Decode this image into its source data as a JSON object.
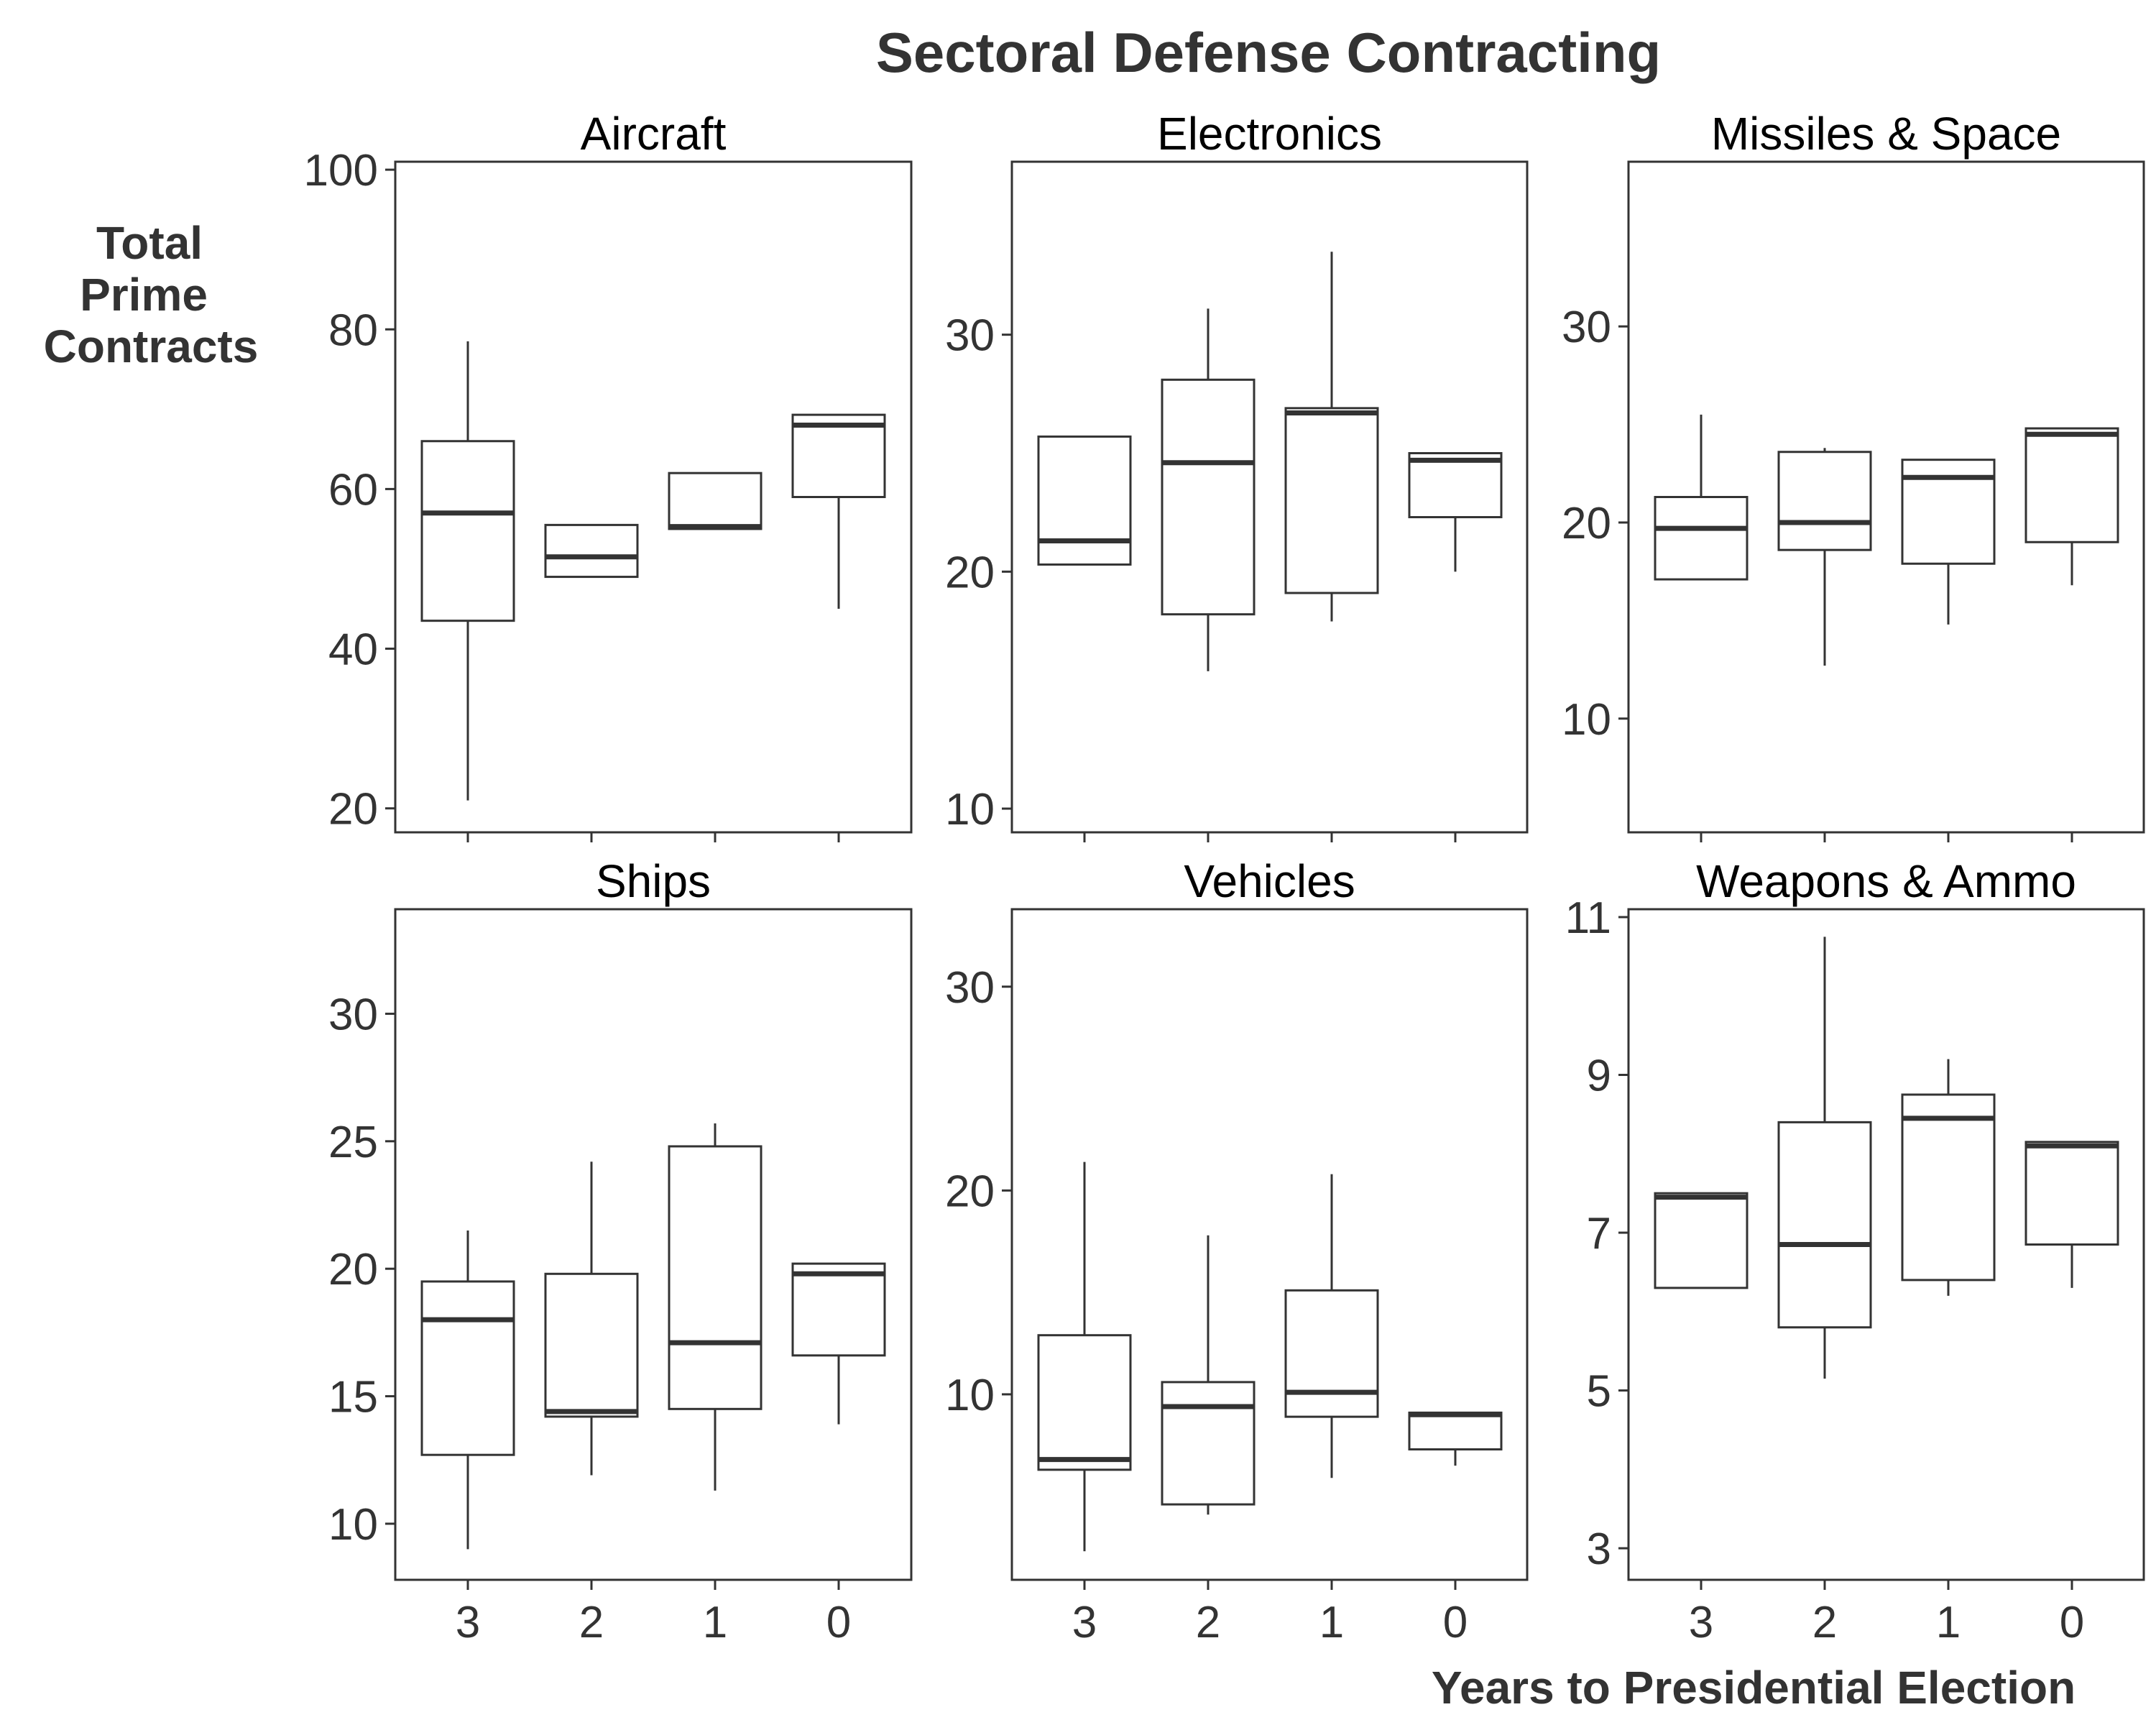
{
  "chart_data": {
    "type": "box",
    "title": "Sectoral Defense Contracting",
    "xlabel": "Years to Presidential Election",
    "ylabel": [
      "Total",
      "Prime",
      "Contracts"
    ],
    "categories": [
      "3",
      "2",
      "1",
      "0"
    ],
    "panels": [
      {
        "name": "Aircraft",
        "ylim": [
          17,
          101
        ],
        "yticks": [
          20,
          40,
          60,
          80,
          100
        ],
        "boxes": [
          {
            "category": "3",
            "min": 21,
            "q1": 43.5,
            "median": 57,
            "q3": 66,
            "max": 78.5
          },
          {
            "category": "2",
            "min": 49,
            "q1": 49,
            "median": 51.5,
            "q3": 55.5,
            "max": 55.5
          },
          {
            "category": "1",
            "min": 55,
            "q1": 55,
            "median": 55.3,
            "q3": 62,
            "max": 62
          },
          {
            "category": "0",
            "min": 45,
            "q1": 59,
            "median": 68,
            "q3": 69.3,
            "max": 69.3
          }
        ]
      },
      {
        "name": "Electronics",
        "ylim": [
          9,
          37.3
        ],
        "yticks": [
          10,
          20,
          30
        ],
        "boxes": [
          {
            "category": "3",
            "min": 20.3,
            "q1": 20.3,
            "median": 21.3,
            "q3": 25.7,
            "max": 25.7
          },
          {
            "category": "2",
            "min": 15.8,
            "q1": 18.2,
            "median": 24.6,
            "q3": 28.1,
            "max": 31.1
          },
          {
            "category": "1",
            "min": 17.9,
            "q1": 19.1,
            "median": 26.7,
            "q3": 26.9,
            "max": 33.5
          },
          {
            "category": "0",
            "min": 20.0,
            "q1": 22.3,
            "median": 24.7,
            "q3": 25.0,
            "max": 25.0
          }
        ]
      },
      {
        "name": "Missiles & Space",
        "ylim": [
          4.2,
          38.4
        ],
        "yticks": [
          10,
          20,
          30
        ],
        "boxes": [
          {
            "category": "3",
            "min": 17.1,
            "q1": 17.1,
            "median": 19.7,
            "q3": 21.3,
            "max": 25.5
          },
          {
            "category": "2",
            "min": 12.7,
            "q1": 18.6,
            "median": 20.0,
            "q3": 23.6,
            "max": 23.8
          },
          {
            "category": "1",
            "min": 14.8,
            "q1": 17.9,
            "median": 22.3,
            "q3": 23.2,
            "max": 23.2
          },
          {
            "category": "0",
            "min": 16.8,
            "q1": 19.0,
            "median": 24.5,
            "q3": 24.8,
            "max": 24.8
          }
        ]
      },
      {
        "name": "Ships",
        "ylim": [
          7.8,
          34.1
        ],
        "yticks": [
          10,
          15,
          20,
          25,
          30
        ],
        "boxes": [
          {
            "category": "3",
            "min": 9.0,
            "q1": 12.7,
            "median": 18.0,
            "q3": 19.5,
            "max": 21.5
          },
          {
            "category": "2",
            "min": 11.9,
            "q1": 14.2,
            "median": 14.4,
            "q3": 19.8,
            "max": 24.2
          },
          {
            "category": "1",
            "min": 11.3,
            "q1": 14.5,
            "median": 17.1,
            "q3": 24.8,
            "max": 25.7
          },
          {
            "category": "0",
            "min": 13.9,
            "q1": 16.6,
            "median": 19.8,
            "q3": 20.2,
            "max": 20.2
          }
        ]
      },
      {
        "name": "Vehicles",
        "ylim": [
          0.9,
          33.8
        ],
        "yticks": [
          10,
          20,
          30
        ],
        "boxes": [
          {
            "category": "3",
            "min": 2.3,
            "q1": 6.3,
            "median": 6.8,
            "q3": 12.9,
            "max": 21.4
          },
          {
            "category": "2",
            "min": 4.1,
            "q1": 4.6,
            "median": 9.4,
            "q3": 10.6,
            "max": 17.8
          },
          {
            "category": "1",
            "min": 5.9,
            "q1": 8.9,
            "median": 10.1,
            "q3": 15.1,
            "max": 20.8
          },
          {
            "category": "0",
            "min": 6.5,
            "q1": 7.3,
            "median": 9.0,
            "q3": 9.1,
            "max": 9.1
          }
        ]
      },
      {
        "name": "Weapons & Ammo",
        "ylim": [
          2.6,
          11.1
        ],
        "yticks": [
          3,
          5,
          7,
          9,
          11
        ],
        "boxes": [
          {
            "category": "3",
            "min": 6.3,
            "q1": 6.3,
            "median": 7.45,
            "q3": 7.5,
            "max": 7.5
          },
          {
            "category": "2",
            "min": 5.15,
            "q1": 5.8,
            "median": 6.85,
            "q3": 8.4,
            "max": 10.75
          },
          {
            "category": "1",
            "min": 6.2,
            "q1": 6.4,
            "median": 8.45,
            "q3": 8.75,
            "max": 9.2
          },
          {
            "category": "0",
            "min": 6.3,
            "q1": 6.85,
            "median": 8.1,
            "q3": 8.15,
            "max": 8.15
          }
        ]
      }
    ],
    "grid": false,
    "legend": "none",
    "colors": {
      "box": "#333333",
      "panel_border": "#333333",
      "text": "#333333",
      "strip_text": "#000000"
    }
  }
}
